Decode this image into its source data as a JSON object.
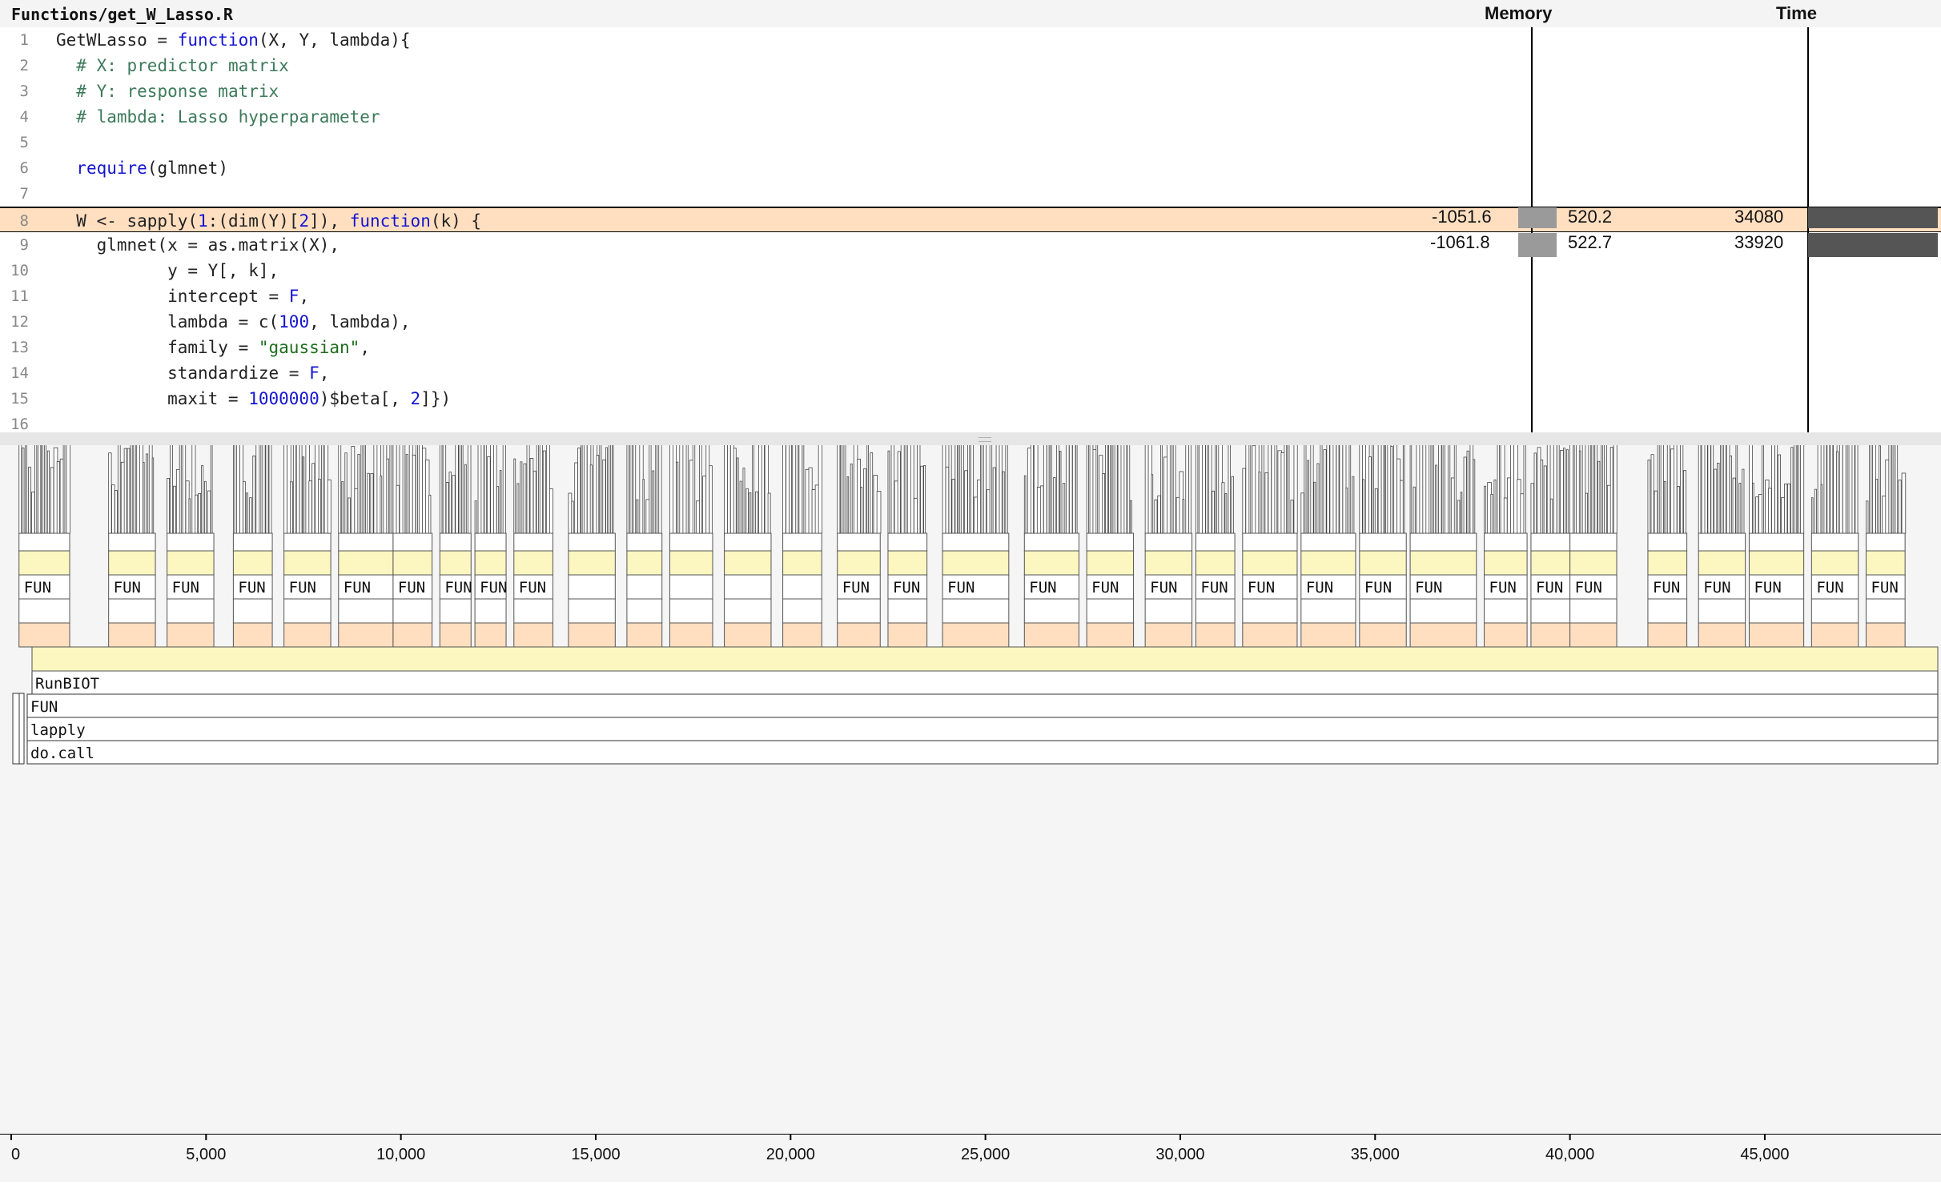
{
  "file": {
    "title": "Functions/get_W_Lasso.R"
  },
  "columns": {
    "memory": "Memory",
    "time": "Time"
  },
  "code": [
    {
      "n": "1",
      "tokens": [
        [
          "",
          "GetWLasso = "
        ],
        [
          "kw",
          "function"
        ],
        [
          "",
          "(X, Y, lambda){"
        ]
      ]
    },
    {
      "n": "2",
      "tokens": [
        [
          "",
          "  "
        ],
        [
          "cm",
          "# X: predictor matrix"
        ]
      ]
    },
    {
      "n": "3",
      "tokens": [
        [
          "",
          "  "
        ],
        [
          "cm",
          "# Y: response matrix"
        ]
      ]
    },
    {
      "n": "4",
      "tokens": [
        [
          "",
          "  "
        ],
        [
          "cm",
          "# lambda: Lasso hyperparameter"
        ]
      ]
    },
    {
      "n": "5",
      "tokens": []
    },
    {
      "n": "6",
      "tokens": [
        [
          "",
          "  "
        ],
        [
          "kw",
          "require"
        ],
        [
          "",
          "(glmnet)"
        ]
      ]
    },
    {
      "n": "7",
      "tokens": []
    },
    {
      "n": "8",
      "tokens": [
        [
          "",
          "  W <- sapply("
        ],
        [
          "num",
          "1"
        ],
        [
          "",
          ":(dim(Y)["
        ],
        [
          "num",
          "2"
        ],
        [
          "",
          "]), "
        ],
        [
          "kw",
          "function"
        ],
        [
          "",
          "(k) {"
        ]
      ]
    },
    {
      "n": "9",
      "tokens": [
        [
          "",
          "    glmnet(x = as.matrix(X),"
        ]
      ]
    },
    {
      "n": "10",
      "tokens": [
        [
          "",
          "           y = Y[, k],"
        ]
      ]
    },
    {
      "n": "11",
      "tokens": [
        [
          "",
          "           intercept = "
        ],
        [
          "kw",
          "F"
        ],
        [
          "",
          ","
        ]
      ]
    },
    {
      "n": "12",
      "tokens": [
        [
          "",
          "           lambda = c("
        ],
        [
          "num",
          "100"
        ],
        [
          "",
          ", lambda),"
        ]
      ]
    },
    {
      "n": "13",
      "tokens": [
        [
          "",
          "           family = "
        ],
        [
          "str",
          "\"gaussian\""
        ],
        [
          "",
          ","
        ]
      ]
    },
    {
      "n": "14",
      "tokens": [
        [
          "",
          "           standardize = "
        ],
        [
          "kw",
          "F"
        ],
        [
          "",
          ","
        ]
      ]
    },
    {
      "n": "15",
      "tokens": [
        [
          "",
          "           maxit = "
        ],
        [
          "num",
          "1000000"
        ],
        [
          "",
          ")$beta[, "
        ],
        [
          "num",
          "2"
        ],
        [
          "",
          "]})"
        ]
      ]
    },
    {
      "n": "16",
      "tokens": []
    }
  ],
  "profile": {
    "highlight_line": "8",
    "rows": [
      {
        "line": "8",
        "mem_released": "-1051.6",
        "mem_alloc": "520.2",
        "time": "34080",
        "mem_fraction": 0.9,
        "time_fraction": 0.95
      },
      {
        "line": "9",
        "mem_released": "-1061.8",
        "mem_alloc": "522.7",
        "time": "33920",
        "mem_fraction": 0.91,
        "time_fraction": 0.95
      }
    ]
  },
  "flame": {
    "bottom_frames": [
      "RunBIOT",
      "FUN",
      "lapply",
      "do.call"
    ],
    "fun_label": "FUN",
    "fun_blocks": [
      [
        200,
        1500
      ],
      [
        2500,
        3700
      ],
      [
        4000,
        5200
      ],
      [
        5700,
        6700
      ],
      [
        7000,
        8200
      ],
      [
        8400,
        9800
      ],
      [
        9800,
        10800
      ],
      [
        11000,
        11800
      ],
      [
        11900,
        12700
      ],
      [
        12900,
        13900
      ],
      [
        21200,
        22300
      ],
      [
        22500,
        23500
      ],
      [
        23900,
        25600
      ],
      [
        26000,
        27400
      ],
      [
        27600,
        28800
      ],
      [
        29100,
        30300
      ],
      [
        30400,
        31400
      ],
      [
        31600,
        33000
      ],
      [
        33100,
        34500
      ],
      [
        34600,
        35800
      ],
      [
        35900,
        37600
      ],
      [
        37800,
        38900
      ],
      [
        39000,
        40000
      ],
      [
        40000,
        41200
      ],
      [
        42000,
        43000
      ],
      [
        43300,
        44500
      ],
      [
        44600,
        46000
      ],
      [
        46200,
        47400
      ],
      [
        47600,
        48600
      ]
    ],
    "lobes": [
      [
        200,
        1500
      ],
      [
        2500,
        3700
      ],
      [
        4000,
        5200
      ],
      [
        5700,
        6700
      ],
      [
        7000,
        8200
      ],
      [
        8400,
        9800
      ],
      [
        9800,
        10800
      ],
      [
        11000,
        11800
      ],
      [
        11900,
        12700
      ],
      [
        12900,
        13900
      ],
      [
        14300,
        15500
      ],
      [
        15800,
        16700
      ],
      [
        16900,
        18000
      ],
      [
        18300,
        19500
      ],
      [
        19800,
        20800
      ],
      [
        21200,
        22300
      ],
      [
        22500,
        23500
      ],
      [
        23900,
        25600
      ],
      [
        26000,
        27400
      ],
      [
        27600,
        28800
      ],
      [
        29100,
        30300
      ],
      [
        30400,
        31400
      ],
      [
        31600,
        33000
      ],
      [
        33100,
        34500
      ],
      [
        34600,
        35800
      ],
      [
        35900,
        37600
      ],
      [
        37800,
        38900
      ],
      [
        39000,
        40000
      ],
      [
        40000,
        41200
      ],
      [
        42000,
        43000
      ],
      [
        43300,
        44500
      ],
      [
        44600,
        46000
      ],
      [
        46200,
        47400
      ],
      [
        47600,
        48600
      ]
    ],
    "x_max": 48700
  },
  "axis": {
    "ticks": [
      {
        "value": 0,
        "label": "0"
      },
      {
        "value": 5000,
        "label": "5,000"
      },
      {
        "value": 10000,
        "label": "10,000"
      },
      {
        "value": 15000,
        "label": "15,000"
      },
      {
        "value": 20000,
        "label": "20,000"
      },
      {
        "value": 25000,
        "label": "25,000"
      },
      {
        "value": 30000,
        "label": "30,000"
      },
      {
        "value": 35000,
        "label": "35,000"
      },
      {
        "value": 40000,
        "label": "40,000"
      },
      {
        "value": 45000,
        "label": "45,000"
      }
    ]
  }
}
